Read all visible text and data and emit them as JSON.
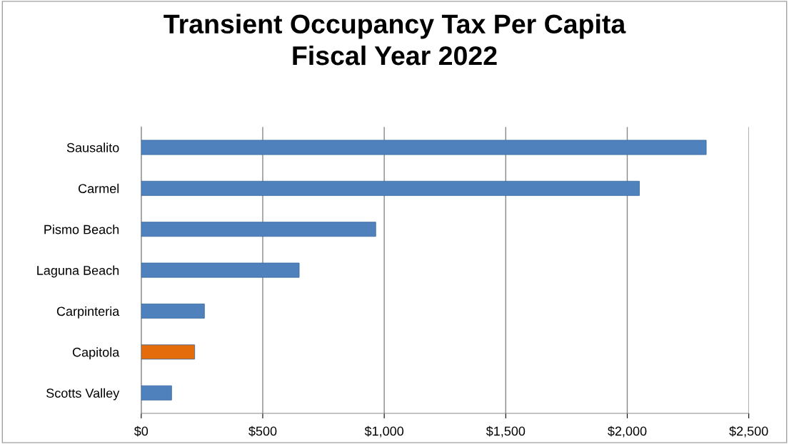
{
  "chart_data": {
    "type": "bar",
    "orientation": "horizontal",
    "title": "Transient Occupancy Tax Per Capita\nFiscal Year 2022",
    "categories": [
      "Sausalito",
      "Carmel",
      "Pismo Beach",
      "Laguna Beach",
      "Carpinteria",
      "Capitola",
      "Scotts Valley"
    ],
    "values": [
      2325,
      2050,
      965,
      650,
      260,
      220,
      125
    ],
    "colors": [
      "#4f81bd",
      "#4f81bd",
      "#4f81bd",
      "#4f81bd",
      "#4f81bd",
      "#e46c0a",
      "#4f81bd"
    ],
    "xlim": [
      0,
      2500
    ],
    "xticks": [
      {
        "value": 0,
        "label": "$0"
      },
      {
        "value": 500,
        "label": "$500"
      },
      {
        "value": 1000,
        "label": "$1,000"
      },
      {
        "value": 1500,
        "label": "$1,500"
      },
      {
        "value": 2000,
        "label": "$2,000"
      },
      {
        "value": 2500,
        "label": "$2,500"
      }
    ],
    "grid": "x",
    "legend": false
  }
}
